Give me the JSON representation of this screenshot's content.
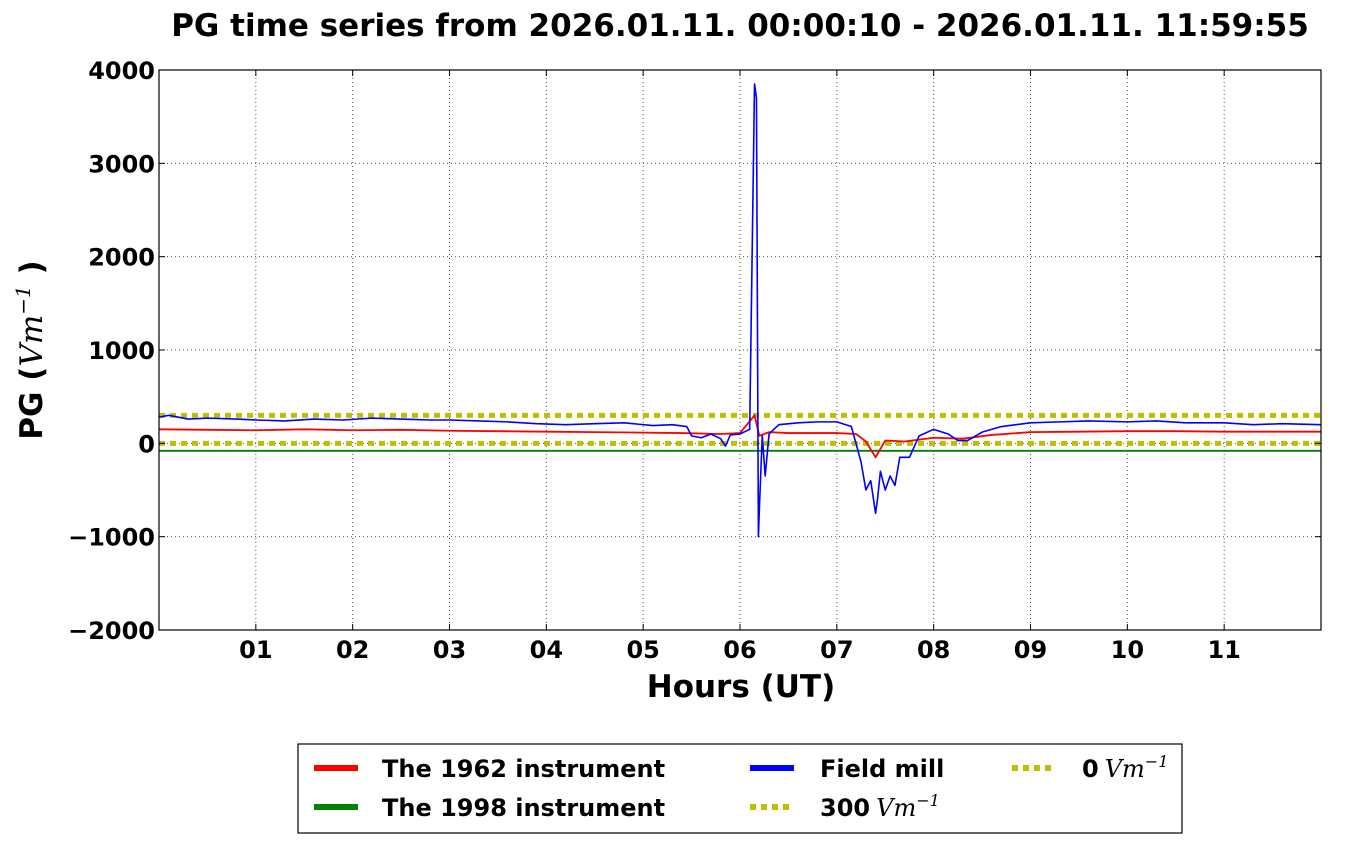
{
  "chart_data": {
    "type": "line",
    "title": "PG time series from 2026.01.11. 00:00:10 - 2026.01.11. 11:59:55",
    "xlabel": "Hours (UT)",
    "ylabel_prefix": "PG (",
    "ylabel_math": "Vm",
    "ylabel_exp": "−1",
    "ylabel_suffix": " )",
    "xlim": [
      0,
      12
    ],
    "ylim": [
      -2000,
      4000
    ],
    "x_ticks": [
      {
        "value": 1,
        "label": "01"
      },
      {
        "value": 2,
        "label": "02"
      },
      {
        "value": 3,
        "label": "03"
      },
      {
        "value": 4,
        "label": "04"
      },
      {
        "value": 5,
        "label": "05"
      },
      {
        "value": 6,
        "label": "06"
      },
      {
        "value": 7,
        "label": "07"
      },
      {
        "value": 8,
        "label": "08"
      },
      {
        "value": 9,
        "label": "09"
      },
      {
        "value": 10,
        "label": "10"
      },
      {
        "value": 11,
        "label": "11"
      }
    ],
    "y_ticks": [
      {
        "value": 4000,
        "label": "4000"
      },
      {
        "value": 3000,
        "label": "3000"
      },
      {
        "value": 2000,
        "label": "2000"
      },
      {
        "value": 1000,
        "label": "1000"
      },
      {
        "value": 0,
        "label": "0"
      },
      {
        "value": -1000,
        "label": "−1000"
      },
      {
        "value": -2000,
        "label": "−2000"
      }
    ],
    "grid": true,
    "legend_position": "bottom-outside",
    "series": [
      {
        "name": "The 1962 instrument",
        "color": "#ff0000",
        "x": [
          0,
          0.5,
          1,
          1.5,
          2,
          2.5,
          3,
          3.5,
          4,
          4.5,
          5,
          5.4,
          5.8,
          6.0,
          6.15,
          6.2,
          6.3,
          6.5,
          7.0,
          7.2,
          7.3,
          7.4,
          7.5,
          7.7,
          8.0,
          8.3,
          8.6,
          9.0,
          9.5,
          10,
          10.5,
          11,
          11.5,
          12
        ],
        "y": [
          150,
          145,
          140,
          150,
          140,
          145,
          135,
          130,
          125,
          120,
          115,
          110,
          100,
          110,
          300,
          80,
          120,
          110,
          110,
          100,
          20,
          -150,
          30,
          20,
          60,
          50,
          90,
          120,
          125,
          130,
          130,
          125,
          125,
          125
        ]
      },
      {
        "name": "The 1998 instrument",
        "color": "#008000",
        "x": [
          0,
          2,
          4,
          6,
          8,
          10,
          12
        ],
        "y": [
          -80,
          -80,
          -80,
          -80,
          -80,
          -80,
          -80
        ]
      },
      {
        "name": "Field mill",
        "color": "#0000ff",
        "x": [
          0,
          0.1,
          0.3,
          0.5,
          0.8,
          1.0,
          1.3,
          1.6,
          1.9,
          2.2,
          2.5,
          2.8,
          3.0,
          3.3,
          3.6,
          3.9,
          4.2,
          4.5,
          4.8,
          5.1,
          5.3,
          5.45,
          5.5,
          5.6,
          5.7,
          5.8,
          5.85,
          5.9,
          6.0,
          6.1,
          6.15,
          6.17,
          6.19,
          6.2,
          6.23,
          6.26,
          6.3,
          6.35,
          6.4,
          6.6,
          6.8,
          7.0,
          7.15,
          7.25,
          7.3,
          7.35,
          7.4,
          7.42,
          7.45,
          7.5,
          7.55,
          7.6,
          7.65,
          7.75,
          7.85,
          8.0,
          8.15,
          8.25,
          8.35,
          8.5,
          8.7,
          9.0,
          9.3,
          9.6,
          10.0,
          10.3,
          10.6,
          11.0,
          11.3,
          11.6,
          12.0
        ],
        "y": [
          280,
          300,
          260,
          270,
          260,
          250,
          240,
          260,
          250,
          270,
          260,
          250,
          250,
          240,
          230,
          210,
          200,
          210,
          220,
          190,
          200,
          180,
          80,
          60,
          100,
          50,
          -30,
          90,
          100,
          150,
          3850,
          3700,
          -1000,
          -700,
          80,
          -350,
          100,
          150,
          200,
          220,
          230,
          230,
          180,
          -200,
          -500,
          -400,
          -750,
          -600,
          -300,
          -500,
          -350,
          -450,
          -150,
          -150,
          80,
          150,
          100,
          30,
          30,
          120,
          180,
          220,
          230,
          240,
          230,
          240,
          220,
          220,
          200,
          210,
          200
        ]
      },
      {
        "name": "300",
        "name_math": "Vm",
        "name_exp": "−1",
        "color": "#bfbf00",
        "x": [
          0,
          12
        ],
        "y": [
          300,
          300
        ]
      },
      {
        "name": "0",
        "name_math": "Vm",
        "name_exp": "−1",
        "color": "#bfbf00",
        "x": [
          0,
          12
        ],
        "y": [
          0,
          0
        ]
      }
    ]
  }
}
